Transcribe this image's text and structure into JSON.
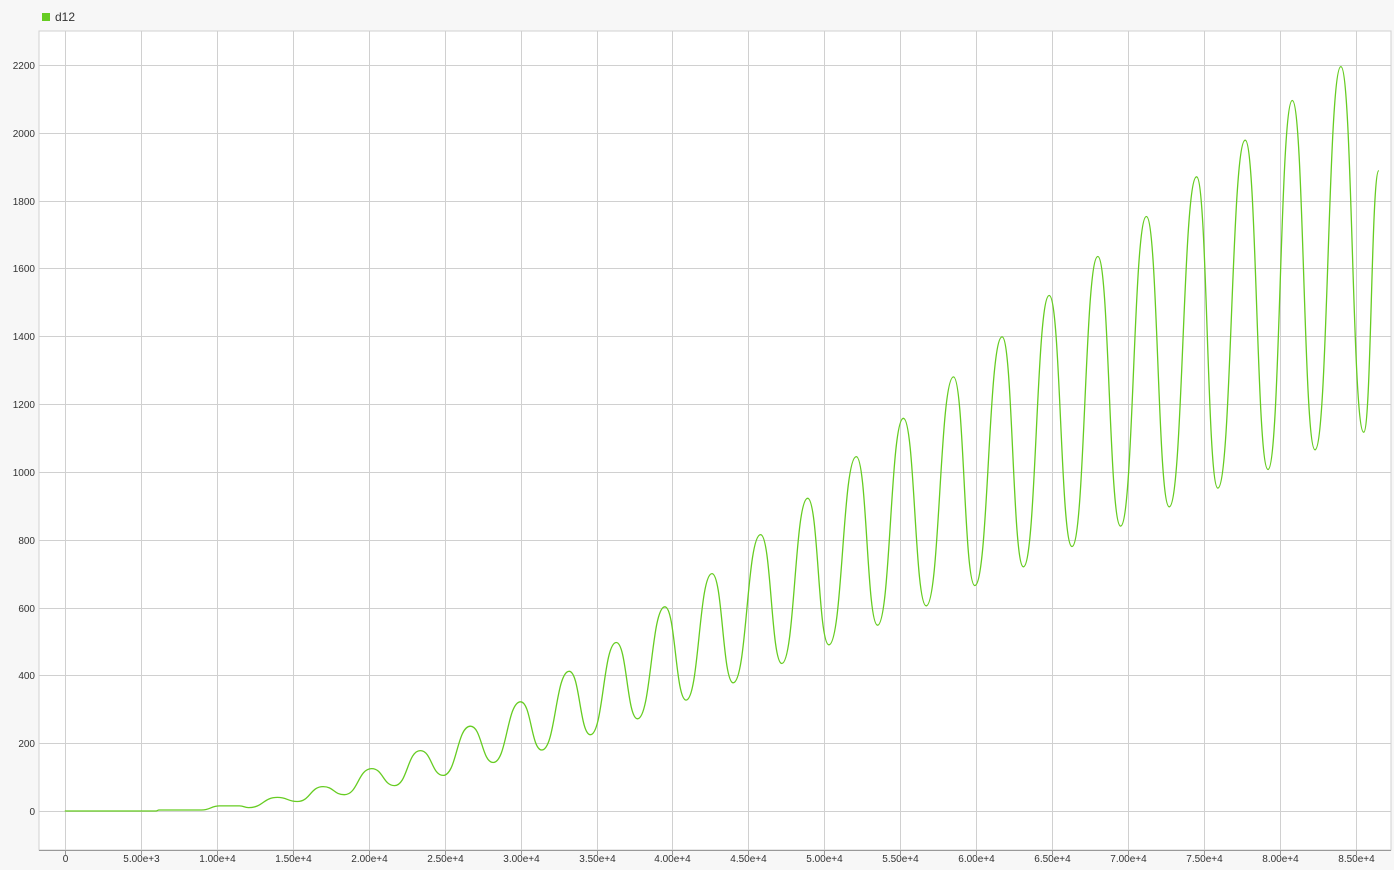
{
  "colors": {
    "series": "#66cc22",
    "grid": "#d0d0d0",
    "plot_bg": "#ffffff",
    "page_bg": "#f7f7f7",
    "axis": "#999999",
    "text": "#333333"
  },
  "legend": {
    "position": "top-left"
  },
  "chart_data": {
    "type": "line",
    "title": "",
    "xlabel": "",
    "ylabel": "",
    "xlim": [
      -1700,
      87300
    ],
    "ylim": [
      -115,
      2300
    ],
    "grid": true,
    "x_ticks": [
      0,
      5000,
      10000,
      15000,
      20000,
      25000,
      30000,
      35000,
      40000,
      45000,
      50000,
      55000,
      60000,
      65000,
      70000,
      75000,
      80000,
      85000
    ],
    "x_tick_labels": [
      "0",
      "5.00e+3",
      "1.00e+4",
      "1.50e+4",
      "2.00e+4",
      "2.50e+4",
      "3.00e+4",
      "3.50e+4",
      "4.00e+4",
      "4.50e+4",
      "5.00e+4",
      "5.50e+4",
      "6.00e+4",
      "6.50e+4",
      "7.00e+4",
      "7.50e+4",
      "8.00e+4",
      "8.50e+4"
    ],
    "y_ticks": [
      0,
      200,
      400,
      600,
      800,
      1000,
      1200,
      1400,
      1600,
      1800,
      2000,
      2200
    ],
    "y_tick_labels": [
      "0",
      "200",
      "400",
      "600",
      "800",
      "1000",
      "1200",
      "1400",
      "1600",
      "1800",
      "2000",
      "2200"
    ],
    "series": [
      {
        "name": "d12",
        "x": [
          0,
          6000,
          6200,
          9000,
          10200,
          11500,
          12100,
          14000,
          15300,
          17000,
          18400,
          20200,
          21700,
          23400,
          24900,
          26700,
          28200,
          30000,
          31400,
          33200,
          34600,
          36300,
          37700,
          39500,
          40900,
          42600,
          44000,
          45800,
          47200,
          48900,
          50300,
          52100,
          53500,
          55200,
          56700,
          58500,
          59900,
          61700,
          63100,
          64800,
          66300,
          68000,
          69500,
          71200,
          72700,
          74500,
          75900,
          77700,
          79200,
          80800,
          82300,
          84000,
          85500,
          86500
        ],
        "y": [
          0,
          0,
          3,
          3,
          15,
          15,
          10,
          40,
          28,
          72,
          48,
          125,
          75,
          178,
          105,
          250,
          143,
          322,
          180,
          412,
          225,
          497,
          272,
          602,
          327,
          700,
          378,
          815,
          435,
          922,
          490,
          1045,
          548,
          1158,
          605,
          1280,
          665,
          1398,
          720,
          1520,
          780,
          1635,
          840,
          1753,
          897,
          1870,
          952,
          1978,
          1007,
          2095,
          1065,
          2195,
          1117,
          1888
        ]
      }
    ]
  }
}
